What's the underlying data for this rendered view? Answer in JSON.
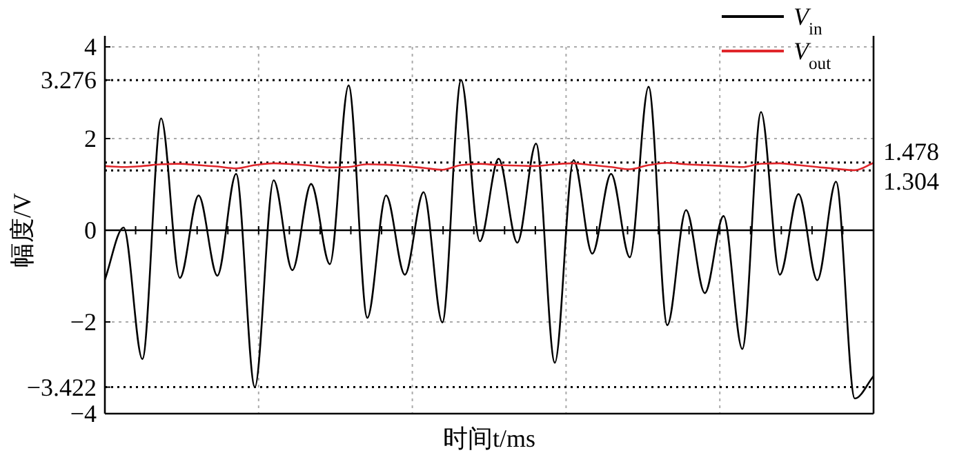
{
  "chart_data": {
    "type": "line",
    "xlabel": "时间t/ms",
    "ylabel": "幅度/V",
    "categories": [
      null,
      null,
      null,
      null,
      null,
      null,
      null,
      null,
      null,
      null,
      null,
      null,
      null,
      null,
      null,
      null,
      null,
      null,
      null,
      null,
      null,
      null,
      null,
      null,
      null,
      null,
      null,
      null,
      null,
      null,
      null,
      null,
      null,
      null,
      null,
      null,
      null,
      null,
      null,
      null,
      null,
      null
    ],
    "series": [
      {
        "name": "V$_{in}$",
        "color": "#000000",
        "values": [
          -1.08,
          0.06,
          -2.81,
          2.44,
          -1.04,
          0.76,
          -0.99,
          1.23,
          -3.422,
          1.09,
          -0.87,
          1.01,
          -0.74,
          3.16,
          -1.91,
          0.76,
          -0.97,
          0.83,
          -2.01,
          3.276,
          -0.24,
          1.56,
          -0.27,
          1.89,
          -2.89,
          1.53,
          -0.51,
          1.23,
          -0.59,
          3.13,
          -2.07,
          0.44,
          -1.37,
          0.31,
          -2.59,
          2.58,
          -0.97,
          0.79,
          -1.09,
          1.06,
          -3.67,
          -3.18
        ]
      },
      {
        "name": "V$_{out}$",
        "color": "#e0262b",
        "values": [
          1.4,
          1.38,
          1.4,
          1.44,
          1.45,
          1.42,
          1.39,
          1.35,
          1.42,
          1.46,
          1.44,
          1.41,
          1.37,
          1.38,
          1.44,
          1.43,
          1.4,
          1.36,
          1.32,
          1.42,
          1.45,
          1.42,
          1.41,
          1.4,
          1.44,
          1.46,
          1.42,
          1.38,
          1.33,
          1.42,
          1.47,
          1.44,
          1.42,
          1.4,
          1.38,
          1.45,
          1.46,
          1.42,
          1.38,
          1.34,
          1.31,
          1.47
        ]
      }
    ],
    "ylim": [
      -4,
      4
    ],
    "yticks": [
      -4,
      -3.422,
      -2,
      0,
      2,
      3.276,
      4
    ],
    "ref_lines": [
      {
        "axis": "y",
        "value": 3.276,
        "label": null,
        "color": "#000000",
        "line_style": "dotted"
      },
      {
        "axis": "y",
        "value": -3.422,
        "label": null,
        "color": "#000000",
        "line_style": "dotted"
      },
      {
        "axis": "y",
        "value": 1.478,
        "label": "1.478",
        "color": "#000000",
        "line_style": "dotted"
      },
      {
        "axis": "y",
        "value": 1.304,
        "label": "1.304",
        "color": "#000000",
        "line_style": "dotted"
      }
    ],
    "grid": true,
    "legend": "top right",
    "marker": "none",
    "line_style": "solid"
  }
}
